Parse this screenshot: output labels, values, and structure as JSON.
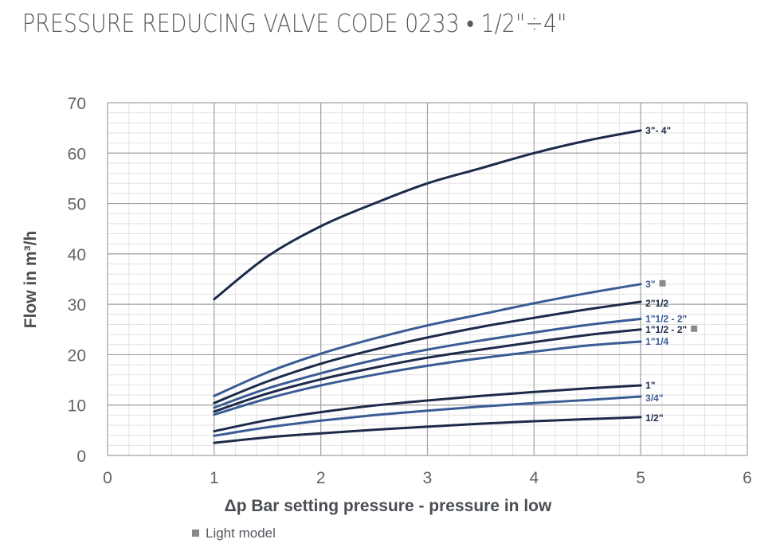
{
  "title": "PRESSURE REDUCING VALVE CODE 0233 • 1/2\"÷4\"",
  "footnote": "Light model",
  "colors": {
    "dark": "#1c2b4a",
    "blue": "#3a5c94",
    "grid": "#c8c8c8",
    "marker": "#8a8a8a"
  },
  "chart_data": {
    "type": "line",
    "title": "PRESSURE REDUCING VALVE CODE 0233 • 1/2\"÷4\"",
    "xlabel": "Δp Bar setting pressure - pressure in low",
    "ylabel": "Flow in m³/h",
    "xlim": [
      0,
      6
    ],
    "ylim": [
      0,
      70
    ],
    "xticks": [
      0,
      1,
      2,
      3,
      4,
      5,
      6
    ],
    "yticks": [
      0,
      10,
      20,
      30,
      40,
      50,
      60,
      70
    ],
    "grid": true,
    "series": [
      {
        "name": "3\"- 4\"",
        "color": "dark",
        "light_model": false,
        "points": [
          [
            1,
            31
          ],
          [
            1.5,
            39.5
          ],
          [
            2,
            45.5
          ],
          [
            2.5,
            50
          ],
          [
            3,
            54
          ],
          [
            3.5,
            57
          ],
          [
            4,
            60
          ],
          [
            4.5,
            62.5
          ],
          [
            5,
            64.5
          ]
        ]
      },
      {
        "name": "3\"",
        "color": "blue",
        "light_model": true,
        "points": [
          [
            1,
            11.8
          ],
          [
            1.5,
            16.5
          ],
          [
            2,
            20.2
          ],
          [
            2.5,
            23.2
          ],
          [
            3,
            25.8
          ],
          [
            3.5,
            28
          ],
          [
            4,
            30.2
          ],
          [
            4.5,
            32.2
          ],
          [
            5,
            34
          ]
        ]
      },
      {
        "name": "2\"1/2",
        "color": "dark",
        "light_model": false,
        "points": [
          [
            1,
            10.4
          ],
          [
            1.5,
            14.7
          ],
          [
            2,
            18.2
          ],
          [
            2.5,
            21
          ],
          [
            3,
            23.4
          ],
          [
            3.5,
            25.5
          ],
          [
            4,
            27.3
          ],
          [
            4.5,
            29
          ],
          [
            5,
            30.5
          ]
        ]
      },
      {
        "name": "1\"1/2 - 2\"",
        "color": "blue",
        "light_model": false,
        "points": [
          [
            1,
            9.5
          ],
          [
            1.5,
            13.3
          ],
          [
            2,
            16.3
          ],
          [
            2.5,
            18.9
          ],
          [
            3,
            21
          ],
          [
            3.5,
            22.8
          ],
          [
            4,
            24.4
          ],
          [
            4.5,
            25.9
          ],
          [
            5,
            27.1
          ]
        ]
      },
      {
        "name": "1\"1/2 - 2\"",
        "color": "dark",
        "light_model": true,
        "points": [
          [
            1,
            8.7
          ],
          [
            1.5,
            12.3
          ],
          [
            2,
            15.1
          ],
          [
            2.5,
            17.4
          ],
          [
            3,
            19.4
          ],
          [
            3.5,
            21
          ],
          [
            4,
            22.5
          ],
          [
            4.5,
            23.9
          ],
          [
            5,
            25
          ]
        ]
      },
      {
        "name": "1\"1/4",
        "color": "blue",
        "light_model": false,
        "points": [
          [
            1,
            8.1
          ],
          [
            1.5,
            11.3
          ],
          [
            2,
            13.9
          ],
          [
            2.5,
            16
          ],
          [
            3,
            17.8
          ],
          [
            3.5,
            19.3
          ],
          [
            4,
            20.6
          ],
          [
            4.5,
            21.8
          ],
          [
            5,
            22.6
          ]
        ]
      },
      {
        "name": "1\"",
        "color": "dark",
        "light_model": false,
        "points": [
          [
            1,
            4.8
          ],
          [
            1.5,
            7
          ],
          [
            2,
            8.6
          ],
          [
            2.5,
            9.9
          ],
          [
            3,
            10.9
          ],
          [
            3.5,
            11.8
          ],
          [
            4,
            12.6
          ],
          [
            4.5,
            13.3
          ],
          [
            5,
            13.9
          ]
        ]
      },
      {
        "name": "3/4\"",
        "color": "blue",
        "light_model": false,
        "points": [
          [
            1,
            3.9
          ],
          [
            1.5,
            5.6
          ],
          [
            2,
            6.9
          ],
          [
            2.5,
            8
          ],
          [
            3,
            8.9
          ],
          [
            3.5,
            9.7
          ],
          [
            4,
            10.4
          ],
          [
            4.5,
            11
          ],
          [
            5,
            11.7
          ]
        ]
      },
      {
        "name": "1/2\"",
        "color": "dark",
        "light_model": false,
        "points": [
          [
            1,
            2.5
          ],
          [
            1.5,
            3.6
          ],
          [
            2,
            4.4
          ],
          [
            2.5,
            5.1
          ],
          [
            3,
            5.7
          ],
          [
            3.5,
            6.3
          ],
          [
            4,
            6.8
          ],
          [
            4.5,
            7.2
          ],
          [
            5,
            7.6
          ]
        ]
      }
    ]
  }
}
